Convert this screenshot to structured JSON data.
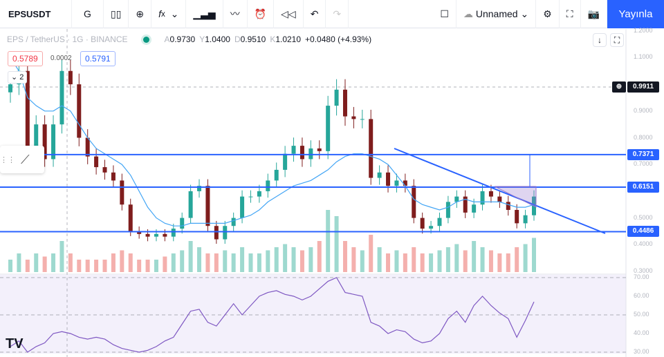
{
  "toolbar": {
    "symbol": "EPSUSDT",
    "interval": "G",
    "layout_name": "Unnamed",
    "publish": "Yayınla"
  },
  "legend": {
    "title": "EPS / TetherUS · 1G · BINANCE",
    "o_label": "A",
    "o": "0.9730",
    "h_label": "Y",
    "h": "1.0400",
    "l_label": "D",
    "l": "0.9510",
    "c_label": "K",
    "c": "1.0210",
    "change": "+0.0480 (+4.93%)"
  },
  "order": {
    "sell": "0.5789",
    "spread": "0.0002",
    "buy": "0.5791",
    "collapse": "2"
  },
  "price_axis": {
    "ticks": [
      "1.2000",
      "1.1000",
      "0.9000",
      "0.8000",
      "0.7000",
      "0.5000",
      "0.4000",
      "0.3000"
    ],
    "crosshair_price": "0.9911",
    "levels": [
      "0.7371",
      "0.6151",
      "0.4486"
    ]
  },
  "rsi_axis": {
    "ticks": [
      "70.00",
      "60.00",
      "50.00",
      "40.00",
      "30.00"
    ]
  },
  "colors": {
    "up": "#26a69a",
    "down": "#7f1d1d",
    "line": "#2962ff",
    "ma": "#42a5f5",
    "rsi": "#7e57c2"
  },
  "chart_data": {
    "type": "candlestick",
    "price_range": [
      0.3,
      1.2
    ],
    "closes": [
      1.0,
      1.05,
      0.75,
      0.85,
      0.72,
      0.85,
      1.05,
      1.0,
      0.8,
      0.73,
      0.69,
      0.67,
      0.64,
      0.55,
      0.45,
      0.44,
      0.43,
      0.44,
      0.43,
      0.46,
      0.5,
      0.6,
      0.62,
      0.47,
      0.42,
      0.47,
      0.5,
      0.58,
      0.58,
      0.6,
      0.64,
      0.68,
      0.74,
      0.77,
      0.72,
      0.76,
      0.75,
      0.92,
      0.98,
      0.88,
      0.87,
      0.87,
      0.65,
      0.67,
      0.62,
      0.64,
      0.62,
      0.5,
      0.46,
      0.47,
      0.5,
      0.56,
      0.58,
      0.52,
      0.55,
      0.6,
      0.58,
      0.56,
      0.53,
      0.48,
      0.51,
      0.58
    ],
    "ma": [
      1.1,
      1.05,
      0.95,
      0.92,
      0.9,
      0.9,
      0.92,
      0.9,
      0.85,
      0.8,
      0.76,
      0.74,
      0.72,
      0.7,
      0.66,
      0.6,
      0.54,
      0.5,
      0.48,
      0.47,
      0.47,
      0.48,
      0.48,
      0.48,
      0.48,
      0.48,
      0.49,
      0.5,
      0.51,
      0.53,
      0.56,
      0.58,
      0.6,
      0.62,
      0.63,
      0.64,
      0.66,
      0.68,
      0.71,
      0.73,
      0.74,
      0.74,
      0.73,
      0.72,
      0.7,
      0.66,
      0.62,
      0.57,
      0.55,
      0.54,
      0.53,
      0.54,
      0.56,
      0.57,
      0.56,
      0.56,
      0.56,
      0.56,
      0.55,
      0.54,
      0.54,
      0.55
    ],
    "volume": [
      0.2,
      0.3,
      0.2,
      0.3,
      0.25,
      0.3,
      0.5,
      0.3,
      0.2,
      0.2,
      0.2,
      0.2,
      0.3,
      0.35,
      0.3,
      0.2,
      0.2,
      0.2,
      0.25,
      0.3,
      0.35,
      0.5,
      0.4,
      0.3,
      0.3,
      0.35,
      0.3,
      0.4,
      0.3,
      0.3,
      0.35,
      0.4,
      0.45,
      0.4,
      0.35,
      0.4,
      0.5,
      1.0,
      0.9,
      0.5,
      0.4,
      0.35,
      0.6,
      0.4,
      0.3,
      0.35,
      0.3,
      0.4,
      0.3,
      0.3,
      0.35,
      0.4,
      0.45,
      0.35,
      0.5,
      0.4,
      0.35,
      0.3,
      0.3,
      0.4,
      0.45,
      0.55
    ],
    "rsi": [
      33,
      36,
      30,
      33,
      35,
      40,
      41,
      40,
      38,
      37,
      38,
      37,
      34,
      32,
      31,
      30,
      31,
      33,
      36,
      38,
      45,
      52,
      53,
      46,
      44,
      50,
      56,
      50,
      55,
      60,
      62,
      63,
      61,
      60,
      58,
      60,
      64,
      68,
      70,
      62,
      61,
      60,
      46,
      44,
      40,
      42,
      41,
      37,
      35,
      36,
      40,
      48,
      52,
      46,
      55,
      60,
      55,
      51,
      48,
      38,
      47,
      57
    ],
    "rsi_range": [
      30,
      70
    ],
    "horizontal_levels": [
      0.7371,
      0.6151,
      0.4486
    ]
  }
}
